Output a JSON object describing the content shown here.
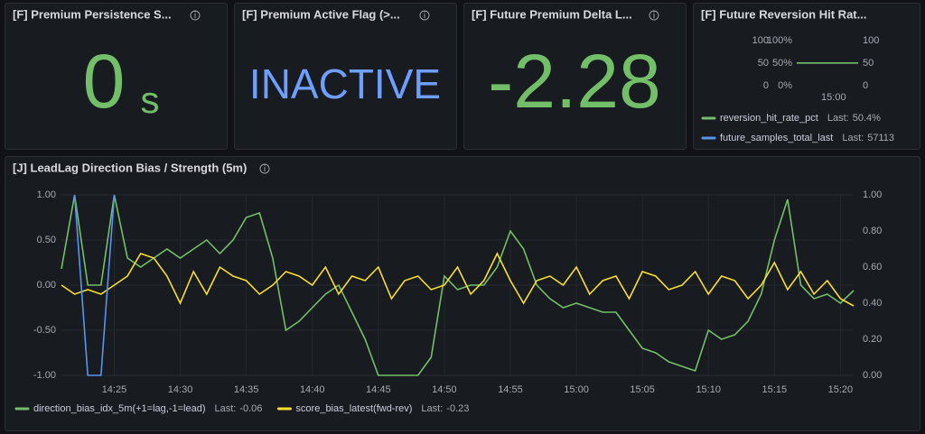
{
  "panels": [
    {
      "title": "[F] Premium Persistence S...",
      "value": 0,
      "unit": "s",
      "color": "#73bf69"
    },
    {
      "title": "[F] Premium Active Flag (>...",
      "value": "INACTIVE",
      "color": "#6e9fff"
    },
    {
      "title": "[F] Future Premium Delta L...",
      "value": -2.28,
      "color": "#73bf69"
    }
  ],
  "chart_data": [
    {
      "type": "line",
      "title": "[F] Future Reversion Hit Rat...",
      "legend_last": "Last:",
      "x": [
        "14:51",
        "15:06"
      ],
      "xlim": [
        "14:51",
        "15:06"
      ],
      "xticks": [
        "15:00"
      ],
      "ylim": [
        0,
        100
      ],
      "yticks": [
        100,
        50,
        0
      ],
      "y2lim": [
        0,
        100
      ],
      "y2ticks": [
        {
          "value": 100,
          "label": "100%"
        },
        {
          "value": 50,
          "label": "50%"
        },
        {
          "value": 0,
          "label": "0%"
        }
      ],
      "y3lim": [
        0,
        100
      ],
      "y3ticks": [
        100,
        50,
        0
      ],
      "grid": false,
      "series": [
        {
          "name": "reversion_hit_rate_pct",
          "color": "#73bf69",
          "axis": "y2",
          "values": [
            50.4,
            50.4
          ],
          "value_labels": [
            null,
            "50.4%"
          ]
        },
        {
          "name": "future_samples_total_last",
          "color": "#5794f2",
          "axis": "y3",
          "values": [
            null,
            null
          ],
          "last": 57113
        }
      ]
    },
    {
      "type": "line",
      "title": "[J] LeadLag Direction Bias / Strength (5m)",
      "legend_last": "Last:",
      "x": [
        "14:21",
        "14:22",
        "14:23",
        "14:24",
        "14:25",
        "14:26",
        "14:27",
        "14:28",
        "14:29",
        "14:30",
        "14:31",
        "14:32",
        "14:33",
        "14:34",
        "14:35",
        "14:36",
        "14:37",
        "14:38",
        "14:39",
        "14:40",
        "14:41",
        "14:42",
        "14:43",
        "14:44",
        "14:45",
        "14:46",
        "14:47",
        "14:48",
        "14:49",
        "14:50",
        "14:51",
        "14:52",
        "14:53",
        "14:54",
        "14:55",
        "14:56",
        "14:57",
        "14:58",
        "14:59",
        "15:00",
        "15:01",
        "15:02",
        "15:03",
        "15:04",
        "15:05",
        "15:06",
        "15:07",
        "15:08",
        "15:09",
        "15:10",
        "15:11",
        "15:12",
        "15:13",
        "15:14",
        "15:15",
        "15:16",
        "15:17",
        "15:18",
        "15:19",
        "15:20",
        "15:21"
      ],
      "xlim": [
        "14:21",
        "15:21"
      ],
      "xticks": [
        "14:25",
        "14:30",
        "14:35",
        "14:40",
        "14:45",
        "14:50",
        "14:55",
        "15:00",
        "15:05",
        "15:10",
        "15:15",
        "15:20"
      ],
      "ylim": [
        -1,
        1
      ],
      "yticks": [
        {
          "value": 1,
          "label": "1.00"
        },
        {
          "value": 0.5,
          "label": "0.50"
        },
        {
          "value": 0,
          "label": "0.00"
        },
        {
          "value": -0.5,
          "label": "-0.50"
        },
        {
          "value": -1,
          "label": "-1.00"
        }
      ],
      "y2lim": [
        0,
        1
      ],
      "y2ticks": [
        {
          "value": 1,
          "label": "1.00"
        },
        {
          "value": 0.8,
          "label": "0.80"
        },
        {
          "value": 0.6,
          "label": "0.60"
        },
        {
          "value": 0.4,
          "label": "0.40"
        },
        {
          "value": 0.2,
          "label": "0.20"
        },
        {
          "value": 0,
          "label": "0.00"
        }
      ],
      "grid": true,
      "series": [
        {
          "name": "direction_bias_idx_5m(+1=lag,-1=lead)",
          "color": "#73bf69",
          "axis": "y",
          "values": [
            0.18,
            1,
            0,
            0,
            1,
            0.3,
            0.2,
            0.3,
            0.4,
            0.3,
            0.4,
            0.5,
            0.35,
            0.5,
            0.75,
            0.8,
            0.3,
            -0.5,
            -0.4,
            -0.25,
            -0.1,
            0,
            -0.3,
            -0.6,
            -1,
            -1,
            -1,
            -1,
            -0.8,
            0.1,
            -0.05,
            0,
            0,
            0.2,
            0.6,
            0.4,
            0,
            -0.15,
            -0.25,
            -0.2,
            -0.25,
            -0.3,
            -0.3,
            -0.5,
            -0.7,
            -0.75,
            -0.85,
            -0.9,
            -0.95,
            -0.5,
            -0.6,
            -0.55,
            -0.4,
            -0.1,
            0.5,
            0.95,
            0,
            -0.15,
            -0.1,
            -0.2,
            -0.06
          ]
        },
        {
          "name": "score_bias_latest(fwd-rev)",
          "color": "#fade2a",
          "axis": "y",
          "values": [
            0,
            -0.1,
            -0.05,
            -0.1,
            0,
            0.1,
            0.35,
            0.3,
            0.1,
            -0.2,
            0.15,
            -0.1,
            0.2,
            0.1,
            0.05,
            -0.1,
            0,
            0.15,
            0.1,
            0,
            0.2,
            -0.1,
            0.1,
            0.05,
            0.2,
            -0.15,
            0.05,
            0.1,
            -0.05,
            0,
            0.2,
            -0.1,
            0.05,
            0.35,
            0.05,
            -0.2,
            0.05,
            0.1,
            0,
            0.2,
            -0.1,
            0.05,
            0.1,
            -0.15,
            0.15,
            0.1,
            -0.05,
            0,
            0.15,
            -0.1,
            0.1,
            0.05,
            -0.15,
            0,
            0.25,
            -0.05,
            0.15,
            -0.1,
            0.05,
            -0.15,
            -0.23
          ]
        },
        {
          "color": "#5794f2",
          "axis": "y2",
          "values": [
            null,
            1,
            0,
            0,
            1,
            null,
            null,
            null,
            null,
            null,
            null,
            null,
            null,
            null,
            null,
            null,
            null,
            null,
            null,
            null,
            null,
            null,
            null,
            null,
            null,
            null,
            null,
            null,
            null,
            null,
            null,
            null,
            null,
            null,
            null,
            null,
            null,
            null,
            null,
            null,
            null,
            null,
            null,
            null,
            null,
            null,
            null,
            null,
            null,
            null,
            null,
            null,
            null,
            null,
            null,
            null,
            null,
            null,
            null,
            null,
            null
          ]
        }
      ]
    }
  ]
}
